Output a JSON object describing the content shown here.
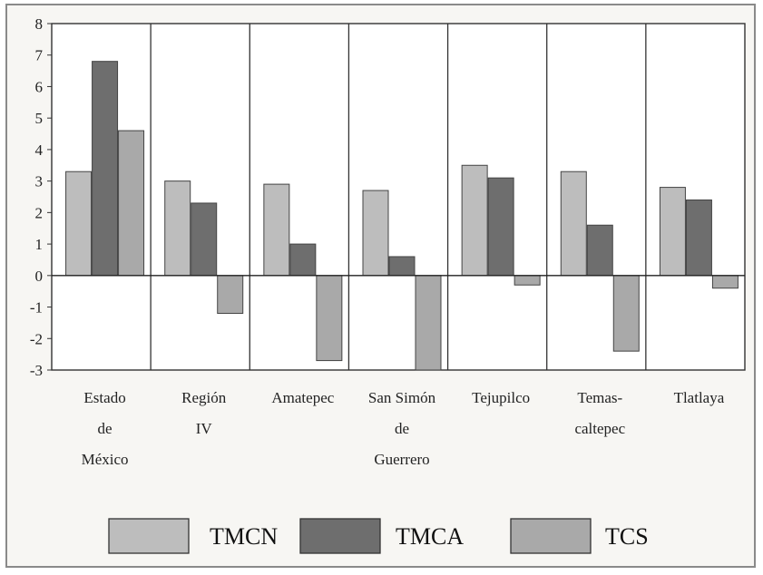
{
  "chart_data": {
    "type": "bar",
    "categories": [
      [
        "Estado",
        "de",
        "México"
      ],
      [
        "Región",
        "IV"
      ],
      [
        "Amatepec"
      ],
      [
        "San Simón",
        "de",
        "Guerrero"
      ],
      [
        "Tejupilco"
      ],
      [
        "Temas-",
        "caltepec"
      ],
      [
        "Tlatlaya"
      ]
    ],
    "series": [
      {
        "name": "TMCN",
        "values": [
          3.3,
          3.0,
          2.9,
          2.7,
          3.5,
          3.3,
          2.8
        ],
        "color": "#bdbdbd"
      },
      {
        "name": "TMCA",
        "values": [
          6.8,
          2.3,
          1.0,
          0.6,
          3.1,
          1.6,
          2.4
        ],
        "color": "#6e6e6e"
      },
      {
        "name": "TCS",
        "values": [
          4.6,
          -1.2,
          -2.7,
          -3.0,
          -0.3,
          -2.4,
          -0.4
        ],
        "color": "#a9a9a9"
      }
    ],
    "ylim": [
      -3,
      8
    ],
    "yticks": [
      8,
      7,
      6,
      5,
      4,
      3,
      2,
      1,
      0,
      -1,
      -2,
      -3
    ],
    "grid": false,
    "legend_position": "bottom"
  }
}
